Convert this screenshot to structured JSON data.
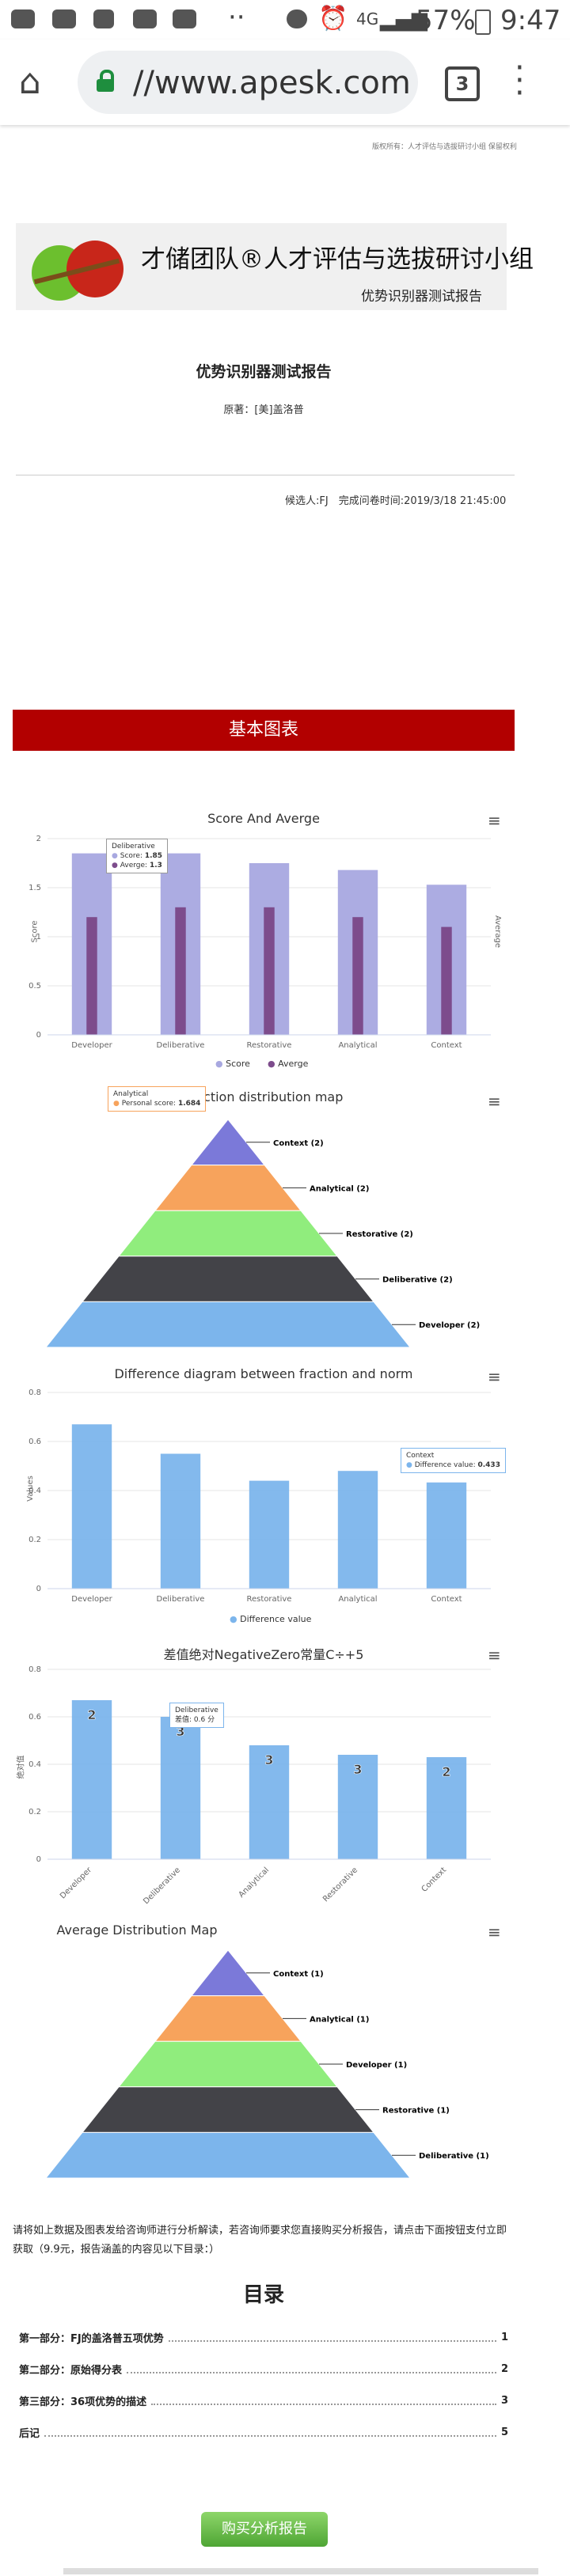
{
  "status_bar": {
    "battery": "57%",
    "time": "9:47",
    "signal": "4G"
  },
  "browser": {
    "url": "//www.apesk.com",
    "tab_count": "3"
  },
  "header": {
    "small_note": "版权所有：人才评估与选拔研讨小组 保留权利",
    "banner_title": "才储团队®人才评估与选拔研讨小组",
    "banner_subtitle": "优势识别器测试报告",
    "report_title": "优势识别器测试报告",
    "author": "原著：[美]盖洛普",
    "candidate_info": "候选人:FJ　完成问卷时间:2019/3/18 21:45:00"
  },
  "section_basic": {
    "label": "基本图表"
  },
  "chart1": {
    "title": "Score And Averge",
    "left_axis": "Score",
    "right_axis": "Average",
    "legend_score": "Score",
    "legend_avg": "Averge",
    "tooltip": {
      "name": "Deliberative",
      "score_label": "Score:",
      "score_value": "1.85",
      "avg_label": "Averge:",
      "avg_value": "1.3"
    }
  },
  "chart2": {
    "title": "Fraction distribution map",
    "tooltip": {
      "name": "Analytical",
      "label": "Personal score:",
      "value": "1.684"
    }
  },
  "chart3": {
    "title": "Difference diagram between fraction and norm",
    "y_axis": "Values",
    "legend": "Difference value",
    "tooltip": {
      "name": "Context",
      "label": "Difference value:",
      "value": "0.433"
    }
  },
  "chart4": {
    "title": "差值绝对NegativeZero常量C÷+5",
    "y_axis": "绝对值",
    "tooltip": {
      "name": "Deliberative",
      "label": "差值: 0.6 分"
    }
  },
  "chart5": {
    "title": "Average Distribution Map"
  },
  "intro_text": "请将如上数据及图表发给咨询师进行分析解读，若咨询师要求您直接购买分析报告，请点击下面按钮支付立即获取（9.9元，报告涵盖的内容见以下目录：）",
  "toc": {
    "title": "目录",
    "items": [
      {
        "label": "第一部分：FJ的盖洛普五项优势",
        "page": "1"
      },
      {
        "label": "第二部分：原始得分表",
        "page": "2"
      },
      {
        "label": "第三部分：36项优势的描述",
        "page": "3"
      },
      {
        "label": "后记",
        "page": "5"
      }
    ]
  },
  "buy_button": "购买分析报告",
  "chart_data": [
    {
      "type": "bar",
      "title": "Score And Averge",
      "categories": [
        "Developer",
        "Deliberative",
        "Restorative",
        "Analytical",
        "Context"
      ],
      "series": [
        {
          "name": "Score",
          "values": [
            1.85,
            1.85,
            1.75,
            1.68,
            1.53
          ]
        },
        {
          "name": "Averge",
          "values": [
            1.2,
            1.3,
            1.3,
            1.2,
            1.1
          ]
        }
      ],
      "ylim": [
        0,
        2
      ],
      "yticks": [
        "0",
        "0.5",
        "1",
        "1.5",
        "2"
      ],
      "colors": [
        "#a8a8e0",
        "#7d4c8c"
      ]
    },
    {
      "type": "pyramid",
      "title": "Fraction distribution map",
      "categories": [
        "Context (2)",
        "Analytical (2)",
        "Restorative (2)",
        "Deliberative (2)",
        "Developer (2)"
      ],
      "colors": [
        "#7b79d9",
        "#f7a35c",
        "#90ed7d",
        "#434348",
        "#7cb5ec"
      ]
    },
    {
      "type": "bar",
      "title": "Difference diagram between fraction and norm",
      "categories": [
        "Developer",
        "Deliberative",
        "Restorative",
        "Analytical",
        "Context"
      ],
      "series": [
        {
          "name": "Difference value",
          "values": [
            0.67,
            0.55,
            0.44,
            0.48,
            0.433
          ]
        }
      ],
      "ylim": [
        0,
        0.8
      ],
      "yticks": [
        "0",
        "0.2",
        "0.4",
        "0.6",
        "0.8"
      ],
      "colors": [
        "#7cb5ec"
      ]
    },
    {
      "type": "bar",
      "title": "差值绝对NegativeZero常量C÷+5",
      "categories": [
        "Developer",
        "Deliberative",
        "Analytical",
        "Restorative",
        "Context"
      ],
      "series": [
        {
          "name": "",
          "values": [
            0.67,
            0.6,
            0.48,
            0.44,
            0.43
          ],
          "labels": [
            "2",
            "3",
            "3",
            "3",
            "2"
          ]
        }
      ],
      "ylim": [
        0,
        0.8
      ],
      "yticks": [
        "0",
        "0.2",
        "0.4",
        "0.6",
        "0.8"
      ],
      "colors": [
        "#7cb5ec"
      ]
    },
    {
      "type": "pyramid",
      "title": "Average Distribution Map",
      "categories": [
        "Context (1)",
        "Analytical (1)",
        "Developer (1)",
        "Restorative (1)",
        "Deliberative (1)"
      ],
      "colors": [
        "#7b79d9",
        "#f7a35c",
        "#90ed7d",
        "#434348",
        "#7cb5ec"
      ]
    }
  ]
}
